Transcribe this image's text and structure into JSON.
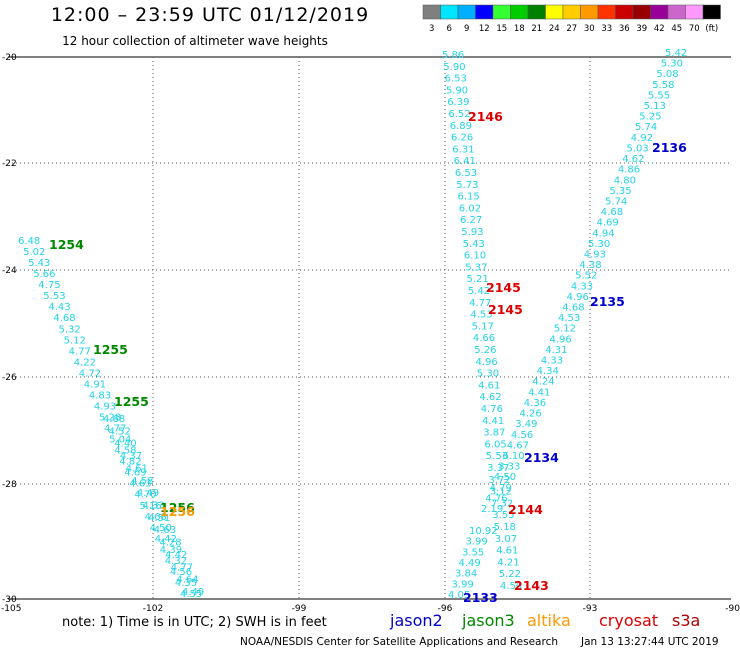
{
  "header": {
    "title": "12:00 – 23:59 UTC 01/12/2019",
    "subtitle": "12 hour collection of altimeter wave heights"
  },
  "color_scale": {
    "ticks": [
      "3",
      "6",
      "9",
      "12",
      "15",
      "18",
      "21",
      "24",
      "27",
      "30",
      "33",
      "36",
      "39",
      "42",
      "45",
      "70",
      "(ft)"
    ],
    "colors": [
      "#7f7f7f",
      "#00e5ff",
      "#00b0ff",
      "#0000ff",
      "#33ff33",
      "#00cc00",
      "#008000",
      "#ffff00",
      "#ffcc00",
      "#ff9900",
      "#ff3300",
      "#cc0000",
      "#990000",
      "#990099",
      "#cc66cc",
      "#ff99ff",
      "#000000"
    ]
  },
  "axes": {
    "lat_labels": [
      "-20",
      "-22",
      "-24",
      "-26",
      "-28",
      "-30"
    ],
    "lon_labels": [
      "-105",
      "-102",
      "-99",
      "-96",
      "-93",
      "-90"
    ]
  },
  "satellites": [
    {
      "name": "jason2",
      "color": "#0000cc"
    },
    {
      "name": "jason3",
      "color": "#008800"
    },
    {
      "name": "altika",
      "color": "#ff9900"
    },
    {
      "name": "cryosat",
      "color": "#dd0000"
    },
    {
      "name": "s3a",
      "color": "#aa0000"
    }
  ],
  "value_color": "#22d3e6",
  "tracks": [
    {
      "id": "a",
      "values": [
        "6.48",
        "5.02",
        "5.43",
        "5.66",
        "4.75",
        "5.53",
        "4.43",
        "4.68",
        "5.32",
        "5.12",
        "4.77",
        "4.22",
        "4.72",
        "4.91",
        "4.83",
        "4.93",
        "5.28",
        "4.77",
        "5.04",
        "4.58",
        "4.82",
        "4.69",
        "4.63",
        "4.70",
        "5.16",
        "4.68",
        "4.50",
        "4.42",
        "4.39",
        "4.32",
        "4.56",
        "4.35",
        "4.55"
      ]
    },
    {
      "id": "b",
      "values": [
        "4.68",
        "4.52",
        "4.40",
        "4.37",
        "4.61",
        "4.58",
        "4.49",
        "4.33",
        "4.51",
        "4.63",
        "4.28",
        "4.42",
        "4.77",
        "4.64",
        "4.49"
      ]
    },
    {
      "id": "c",
      "values": [
        "5.86",
        "5.90",
        "6.53",
        "5.90",
        "6.39",
        "6.52",
        "6.89",
        "6.26",
        "6.31",
        "6.41",
        "6.53",
        "5.73",
        "6.15",
        "6.02",
        "6.27",
        "5.93",
        "5.43",
        "6.10",
        "5.37",
        "5.21",
        "5.42",
        "4.77",
        "4.53",
        "5.17",
        "4.66",
        "5.26",
        "4.96",
        "5.30",
        "4.61",
        "4.62",
        "4.76",
        "4.41",
        "3.87",
        "6.05",
        "5.53",
        "3.37",
        "3.72",
        "3.12",
        "7.32",
        "3.55",
        "5.18",
        "3.07",
        "4.61",
        "4.21",
        "5.22",
        "4.50"
      ]
    },
    {
      "id": "d",
      "values": [
        "10.92",
        "3.99",
        "3.55",
        "4.49",
        "3.84",
        "3.99",
        "4.05"
      ]
    },
    {
      "id": "e",
      "values": [
        "5.42",
        "5.30",
        "5.08",
        "5.58",
        "5.55",
        "5.13",
        "5.25",
        "5.74",
        "4.92",
        "5.03",
        "4.62",
        "4.86",
        "4.80",
        "5.35",
        "5.74",
        "4.68",
        "4.69",
        "4.94",
        "5.30",
        "4.93",
        "4.38",
        "5.52",
        "4.33",
        "4.96",
        "4.68",
        "4.53",
        "5.12",
        "4.96",
        "4.31",
        "4.33",
        "4.34",
        "4.24",
        "4.41",
        "4.36",
        "4.26",
        "3.49",
        "4.56",
        "4.67",
        "6.10",
        "3.33",
        "4.50",
        "4.79",
        "4.76",
        "2.19"
      ]
    }
  ],
  "time_labels": [
    {
      "text": "1254",
      "sat": "jason3"
    },
    {
      "text": "1255",
      "sat": "jason3"
    },
    {
      "text": "1255",
      "sat": "jason3"
    },
    {
      "text": "1256",
      "sat": "jason3"
    },
    {
      "text": "1256",
      "sat": "altika"
    },
    {
      "text": "2146",
      "sat": "cryosat"
    },
    {
      "text": "2136",
      "sat": "jason2"
    },
    {
      "text": "2145",
      "sat": "cryosat"
    },
    {
      "text": "2145",
      "sat": "cryosat"
    },
    {
      "text": "2135",
      "sat": "jason2"
    },
    {
      "text": "2134",
      "sat": "jason2"
    },
    {
      "text": "2144",
      "sat": "cryosat"
    },
    {
      "text": "2143",
      "sat": "cryosat"
    },
    {
      "text": "2133",
      "sat": "jason2"
    }
  ],
  "footer": {
    "note": "note:  1) Time is in UTC;  2) SWH is in feet",
    "credit": "NOAA/NESDIS Center for Satellite Applications and Research",
    "timestamp": "Jan 13 13:27:44 UTC 2019"
  }
}
